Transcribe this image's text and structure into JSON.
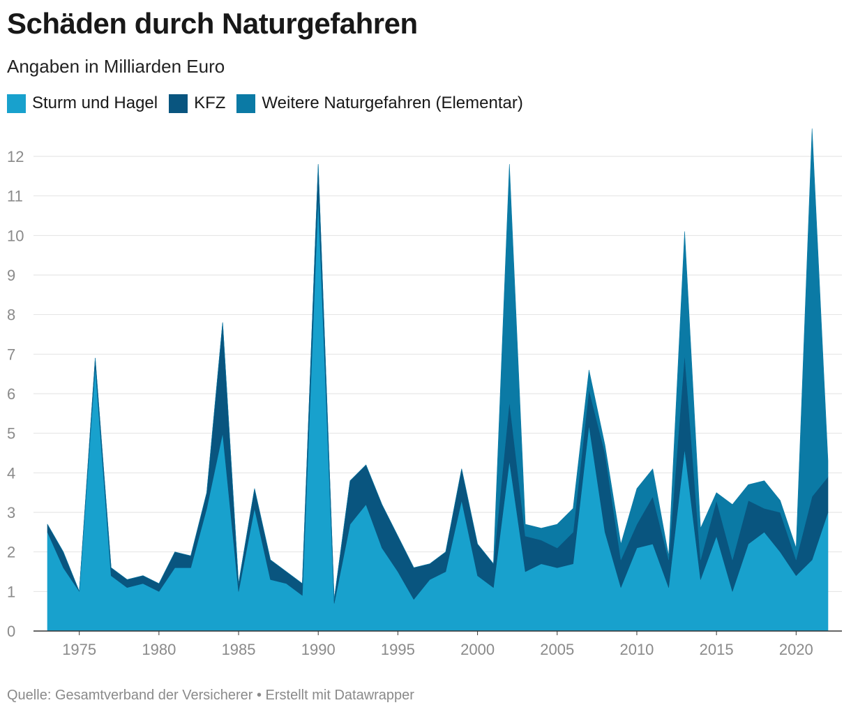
{
  "chart_data": {
    "type": "area",
    "stacked": true,
    "title": "Schäden durch Naturgefahren",
    "subtitle": "Angaben in Milliarden Euro",
    "x": [
      1973,
      1974,
      1975,
      1976,
      1977,
      1978,
      1979,
      1980,
      1981,
      1982,
      1983,
      1984,
      1985,
      1986,
      1987,
      1988,
      1989,
      1990,
      1991,
      1992,
      1993,
      1994,
      1995,
      1996,
      1997,
      1998,
      1999,
      2000,
      2001,
      2002,
      2003,
      2004,
      2005,
      2006,
      2007,
      2008,
      2009,
      2010,
      2011,
      2012,
      2013,
      2014,
      2015,
      2016,
      2017,
      2018,
      2019,
      2020,
      2021,
      2022
    ],
    "series": [
      {
        "name": "Sturm und Hagel",
        "color": "#18a1cd",
        "values": [
          2.5,
          1.6,
          1.0,
          6.7,
          1.4,
          1.1,
          1.2,
          1.0,
          1.6,
          1.6,
          3.1,
          5.0,
          1.0,
          3.1,
          1.3,
          1.2,
          0.9,
          11.0,
          0.7,
          2.7,
          3.2,
          2.1,
          1.5,
          0.8,
          1.3,
          1.5,
          3.3,
          1.4,
          1.1,
          4.3,
          1.5,
          1.7,
          1.6,
          1.7,
          5.2,
          2.5,
          1.1,
          2.1,
          2.2,
          1.1,
          4.6,
          1.3,
          2.4,
          1.0,
          2.2,
          2.5,
          2.0,
          1.4,
          1.8,
          3.0
        ]
      },
      {
        "name": "KFZ",
        "color": "#09557f",
        "values": [
          0.2,
          0.4,
          0.0,
          0.2,
          0.2,
          0.2,
          0.2,
          0.2,
          0.4,
          0.3,
          0.4,
          2.8,
          0.2,
          0.5,
          0.5,
          0.3,
          0.3,
          0.8,
          0.1,
          1.1,
          1.0,
          1.1,
          0.9,
          0.8,
          0.4,
          0.5,
          0.8,
          0.8,
          0.6,
          1.5,
          0.9,
          0.6,
          0.5,
          0.8,
          0.9,
          2.0,
          0.7,
          0.6,
          1.2,
          0.7,
          2.4,
          0.5,
          0.9,
          0.8,
          1.1,
          0.6,
          1.0,
          0.4,
          1.6,
          0.9
        ]
      },
      {
        "name": "Weitere Naturgefahren (Elementar)",
        "color": "#0b7aa5",
        "values": [
          0,
          0,
          0,
          0,
          0,
          0,
          0,
          0,
          0,
          0,
          0,
          0,
          0,
          0,
          0,
          0,
          0,
          0,
          0,
          0,
          0,
          0,
          0,
          0,
          0,
          0,
          0,
          0,
          0,
          6.0,
          0.3,
          0.3,
          0.6,
          0.6,
          0.5,
          0.2,
          0.4,
          0.9,
          0.7,
          0.1,
          3.1,
          0.8,
          0.2,
          1.4,
          0.4,
          0.7,
          0.3,
          0.3,
          9.3,
          0.4
        ]
      }
    ],
    "ylim": [
      0,
      12.6
    ],
    "yticks": [
      0,
      1,
      2,
      3,
      4,
      5,
      6,
      7,
      8,
      9,
      10,
      11,
      12
    ],
    "xticks": [
      1975,
      1980,
      1985,
      1990,
      1995,
      2000,
      2005,
      2010,
      2015,
      2020
    ],
    "legend_position": "top-left",
    "grid": true
  },
  "footer": {
    "source_label": "Quelle:",
    "source": "Gesamtverband der Versicherer",
    "separator": "•",
    "credit": "Erstellt mit Datawrapper"
  }
}
